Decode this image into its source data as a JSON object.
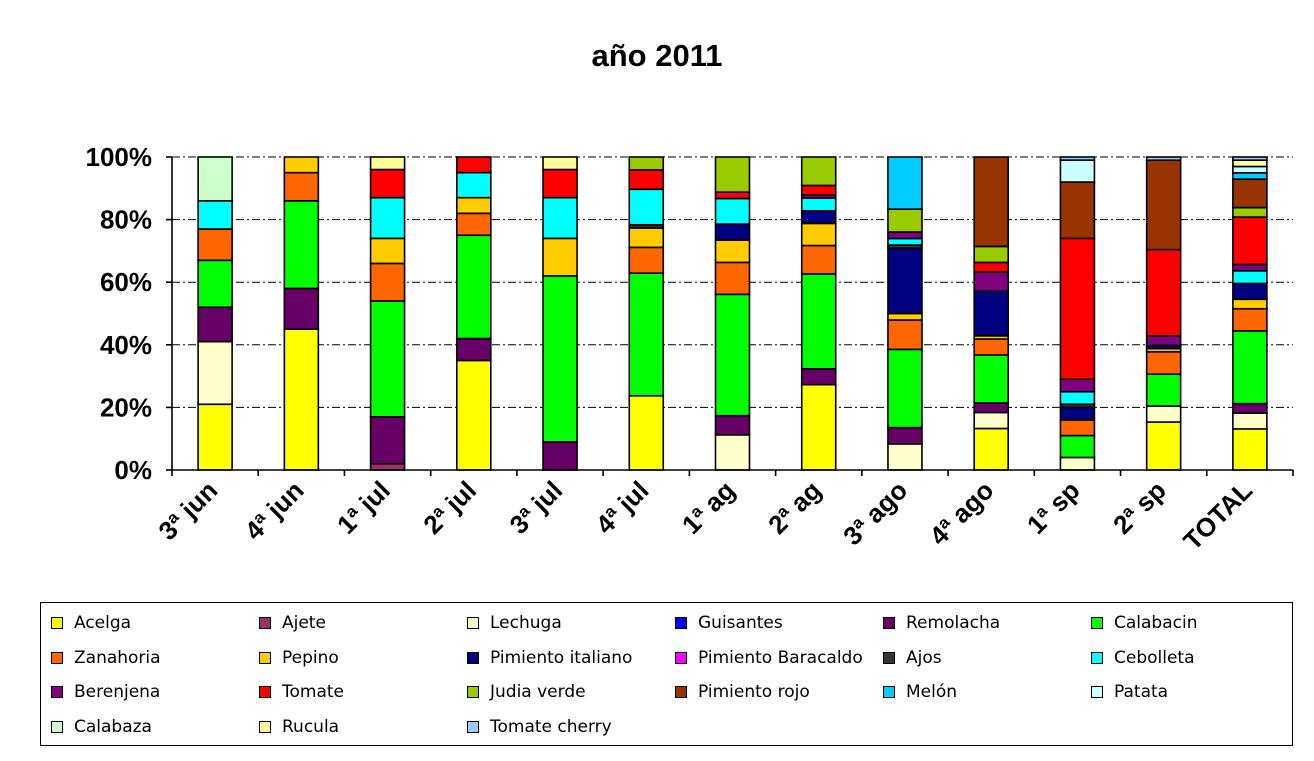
{
  "chart_data": {
    "type": "bar",
    "stacked": true,
    "percent": true,
    "title": "año 2011",
    "xlabel": "",
    "ylabel": "",
    "ylim": [
      0,
      100
    ],
    "yticks": [
      "0%",
      "20%",
      "40%",
      "60%",
      "80%",
      "100%"
    ],
    "grid": "horizontal dash-dot",
    "legend_position": "bottom",
    "categories": [
      "3ª jun",
      "4ª jun",
      "1ª jul",
      "2ª jul",
      "3ª jul",
      "4ª jul",
      "1ª ag",
      "2ª ag",
      "3ª ago",
      "4ª ago",
      "1ª sp",
      "2ª sp",
      "TOTAL"
    ],
    "series": [
      {
        "name": "Acelga",
        "color": "#FFFF00",
        "values": [
          21,
          45,
          0,
          35,
          0,
          23,
          0,
          27,
          0,
          13,
          0,
          15,
          13
        ]
      },
      {
        "name": "Ajete",
        "color": "#993366",
        "values": [
          0,
          0,
          2,
          0,
          0,
          0,
          0,
          0,
          0,
          0,
          0,
          0,
          0
        ]
      },
      {
        "name": "Lechuga",
        "color": "#FFFFCC",
        "values": [
          20,
          0,
          0,
          0,
          0,
          0,
          11,
          0,
          8,
          5,
          4,
          5,
          5
        ]
      },
      {
        "name": "Guisantes",
        "color": "#0000FF",
        "values": [
          0,
          0,
          0,
          0,
          0,
          0,
          0,
          0,
          0,
          0,
          0,
          0,
          0
        ]
      },
      {
        "name": "Remolacha",
        "color": "#660066",
        "values": [
          11,
          13,
          15,
          7,
          9,
          0,
          6,
          5,
          5,
          3,
          0,
          0,
          3
        ]
      },
      {
        "name": "Calabacin",
        "color": "#00FF00",
        "values": [
          15,
          28,
          37,
          33,
          53,
          38,
          38,
          30,
          24,
          15,
          7,
          10,
          23
        ]
      },
      {
        "name": "Zanahoria",
        "color": "#FF6600",
        "values": [
          10,
          9,
          12,
          7,
          0,
          8,
          10,
          9,
          9,
          5,
          5,
          7,
          7
        ]
      },
      {
        "name": "Pepino",
        "color": "#FFCC00",
        "values": [
          0,
          5,
          8,
          5,
          12,
          6,
          7,
          7,
          2,
          1,
          0,
          1,
          3
        ]
      },
      {
        "name": "Pimiento italiano",
        "color": "#000080",
        "values": [
          0,
          0,
          0,
          0,
          0,
          0,
          5,
          4,
          20,
          14,
          4,
          1,
          5
        ]
      },
      {
        "name": "Pimiento Baracaldo",
        "color": "#FF00FF",
        "values": [
          0,
          0,
          0,
          0,
          0,
          0,
          0,
          0,
          0,
          0,
          0,
          0,
          0
        ]
      },
      {
        "name": "Ajos",
        "color": "#333333",
        "values": [
          0,
          0,
          0,
          0,
          0,
          1,
          0,
          0,
          1,
          0,
          1,
          0,
          0
        ]
      },
      {
        "name": "Cebolleta",
        "color": "#00FFFF",
        "values": [
          9,
          0,
          13,
          8,
          13,
          11,
          8,
          4,
          2,
          0,
          4,
          0,
          4
        ]
      },
      {
        "name": "Berenjena",
        "color": "#800080",
        "values": [
          0,
          0,
          0,
          0,
          0,
          0,
          0,
          1,
          2,
          6,
          4,
          3,
          2
        ]
      },
      {
        "name": "Tomate",
        "color": "#FF0000",
        "values": [
          0,
          0,
          9,
          5,
          9,
          6,
          2,
          3,
          0,
          3,
          45,
          27,
          15
        ]
      },
      {
        "name": "Judia verde",
        "color": "#99CC00",
        "values": [
          0,
          0,
          0,
          0,
          0,
          4,
          11,
          9,
          7,
          5,
          0,
          0,
          3
        ]
      },
      {
        "name": "Pimiento rojo",
        "color": "#993300",
        "values": [
          0,
          0,
          0,
          0,
          0,
          0,
          0,
          0,
          0,
          28,
          18,
          28,
          9
        ]
      },
      {
        "name": "Melón",
        "color": "#00CCFF",
        "values": [
          0,
          0,
          0,
          0,
          0,
          0,
          0,
          0,
          16,
          0,
          0,
          0,
          2
        ]
      },
      {
        "name": "Patata",
        "color": "#CCFFFF",
        "values": [
          0,
          0,
          0,
          0,
          0,
          0,
          0,
          0,
          0,
          0,
          7,
          0,
          2
        ]
      },
      {
        "name": "Calabaza",
        "color": "#CCFFCC",
        "values": [
          14,
          0,
          0,
          0,
          0,
          0,
          0,
          0,
          0,
          0,
          0,
          0,
          0
        ]
      },
      {
        "name": "Rucula",
        "color": "#FFFF99",
        "values": [
          0,
          0,
          4,
          0,
          4,
          0,
          0,
          0,
          0,
          0,
          0,
          0,
          2
        ]
      },
      {
        "name": "Tomate cherry",
        "color": "#99CCFF",
        "values": [
          0,
          0,
          0,
          0,
          0,
          0,
          0,
          0,
          0,
          0,
          1,
          1,
          1
        ]
      }
    ]
  }
}
